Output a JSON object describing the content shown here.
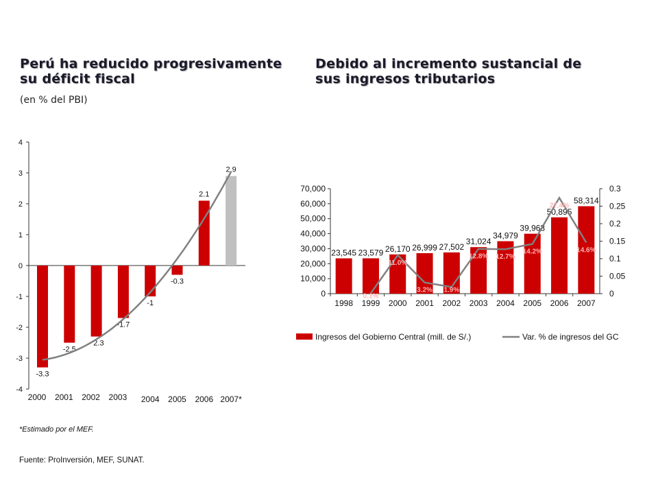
{
  "left_panel": {
    "title_line1": "Perú ha reducido progresivamente",
    "title_line2": "su déficit fiscal",
    "subtitle": "(en % del PBI)",
    "note": "*Estimado por el MEF."
  },
  "right_panel": {
    "title_line1": "Debido al incremento sustancial de",
    "title_line2": "sus ingresos tributarios"
  },
  "source": "Fuente: ProInversión, MEF, SUNAT.",
  "colors": {
    "bar_red": "#cc0000",
    "bar_estimate": "#c0c0c0",
    "trend_line": "#808080"
  },
  "chart_data": [
    {
      "type": "bar",
      "categories": [
        "2000",
        "2001",
        "2002",
        "2003",
        "2004",
        "2005",
        "2006",
        "2007*"
      ],
      "values": [
        -3.3,
        -2.5,
        -2.3,
        -1.7,
        -1,
        -0.3,
        2.1,
        2.9
      ],
      "data_labels": [
        "-3.3",
        "-2.5",
        "- 2.3",
        "-1.7",
        "-1",
        "-0.3",
        "2.1",
        "2.9"
      ],
      "estimated": [
        false,
        false,
        false,
        false,
        false,
        false,
        false,
        true
      ],
      "trendline": true,
      "ylim": [
        -4,
        4
      ],
      "yticks": [
        "4",
        "3",
        "2",
        "1",
        "0",
        "-1",
        "-2",
        "-3",
        "-4"
      ],
      "grid": false,
      "legend": "none"
    },
    {
      "type": "bar",
      "categories": [
        "1998",
        "1999",
        "2000",
        "2001",
        "2002",
        "2003",
        "2004",
        "2005",
        "2006",
        "2007"
      ],
      "series": [
        {
          "name": "Ingresos del Gobierno Central (mill. de S/.)",
          "values": [
            23545,
            23579,
            26170,
            26999,
            27502,
            31024,
            34979,
            39963,
            50895,
            58314
          ],
          "labels": [
            "23,545",
            "23,579",
            "26,170",
            "26,999",
            "27,502",
            "31,024",
            "34,979",
            "39,963",
            "50,895",
            "58,314"
          ],
          "axis": "left"
        },
        {
          "name": "Var. % de ingresos del GC",
          "type": "line",
          "values": [
            null,
            0.001,
            0.11,
            0.032,
            0.019,
            0.128,
            0.127,
            0.142,
            0.274,
            0.146
          ],
          "labels": [
            "",
            "0.1%",
            "11.0%",
            "3.2%",
            "1.9%",
            "12.8%",
            "12.7%",
            "14.2%",
            "27.4%",
            "14.6%"
          ],
          "axis": "right"
        }
      ],
      "ylim": [
        0,
        70000
      ],
      "y2lim": [
        0,
        0.3
      ],
      "yticks": [
        "70,000",
        "60,000",
        "50,000",
        "40,000",
        "30,000",
        "20,000",
        "10,000",
        "0"
      ],
      "y2ticks": [
        "0.3",
        "0.25",
        "0.2",
        "0.15",
        "0.1",
        "0.05",
        "0"
      ],
      "grid": false,
      "legend": "bottom"
    }
  ]
}
